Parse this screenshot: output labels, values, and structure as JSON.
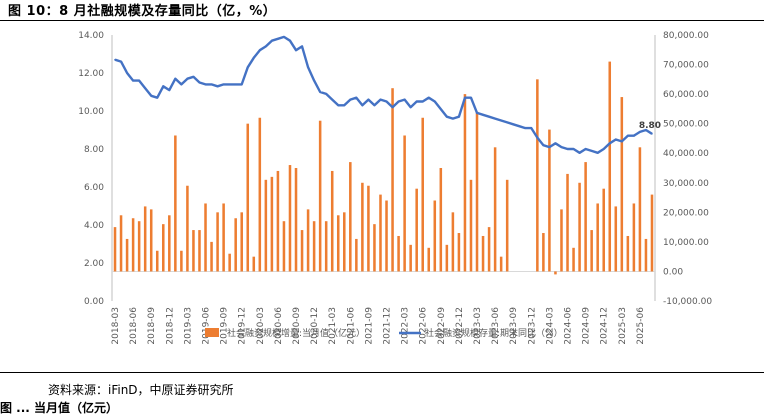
{
  "header": {
    "title": "图 10：8 月社融规模及存量同比（亿，%）"
  },
  "footer": {
    "source": "资料来源：iFinD，中原证券研究所",
    "next_caption": "图 ... 当月值（亿元）"
  },
  "chart_data": {
    "type": "bar+line",
    "title": "",
    "xlabel": "",
    "ylabel": "",
    "grid": false,
    "legend_position": "bottom",
    "colors": {
      "bar": "#ED7D31",
      "line": "#4472C4"
    },
    "x": [
      "2018-03",
      "2018-04",
      "2018-05",
      "2018-06",
      "2018-07",
      "2018-08",
      "2018-09",
      "2018-10",
      "2018-11",
      "2018-12",
      "2019-01",
      "2019-02",
      "2019-03",
      "2019-04",
      "2019-05",
      "2019-06",
      "2019-07",
      "2019-08",
      "2019-09",
      "2019-10",
      "2019-11",
      "2019-12",
      "2020-01",
      "2020-02",
      "2020-03",
      "2020-04",
      "2020-05",
      "2020-06",
      "2020-07",
      "2020-08",
      "2020-09",
      "2020-10",
      "2020-11",
      "2020-12",
      "2021-01",
      "2021-02",
      "2021-03",
      "2021-04",
      "2021-05",
      "2021-06",
      "2021-07",
      "2021-08",
      "2021-09",
      "2021-10",
      "2021-11",
      "2021-12",
      "2022-01",
      "2022-02",
      "2022-03",
      "2022-04",
      "2022-05",
      "2022-06",
      "2022-07",
      "2022-08",
      "2022-09",
      "2022-10",
      "2022-11",
      "2022-12",
      "2023-01",
      "2023-02",
      "2023-03",
      "2023-04",
      "2023-05",
      "2023-06",
      "2023-07",
      "2023-08",
      "2023-09",
      "2023-10",
      "2023-11",
      "2023-12",
      "2024-01",
      "2024-02",
      "2024-03",
      "2024-04",
      "2024-05",
      "2024-06",
      "2024-07",
      "2024-08",
      "2024-09",
      "2024-10",
      "2024-11",
      "2024-12",
      "2025-01",
      "2025-02",
      "2025-03",
      "2025-04",
      "2025-05",
      "2025-06",
      "2025-07",
      "2025-08"
    ],
    "x_tick_labels": [
      "2018-03",
      "2018-06",
      "2018-09",
      "2018-12",
      "2019-03",
      "2019-06",
      "2019-09",
      "2019-12",
      "2020-03",
      "2020-06",
      "2020-09",
      "2020-12",
      "2021-03",
      "2021-06",
      "2021-09",
      "2021-12",
      "2022-03",
      "2022-06",
      "2022-09",
      "2022-12",
      "2023-03",
      "2023-06",
      "2023-09",
      "2023-12",
      "2024-03",
      "2024-06",
      "2024-09",
      "2024-12",
      "2025-03",
      "2025-06"
    ],
    "y_left": {
      "range": [
        0,
        14
      ],
      "ticks": [
        "0.00",
        "2.00",
        "4.00",
        "6.00",
        "8.00",
        "10.00",
        "12.00",
        "14.00"
      ]
    },
    "y_right": {
      "range": [
        -10000,
        80000
      ],
      "ticks": [
        "-10,000.00",
        "0.00",
        "10,000.00",
        "20,000.00",
        "30,000.00",
        "40,000.00",
        "50,000.00",
        "60,000.00",
        "70,000.00",
        "80,000.00"
      ]
    },
    "series": [
      {
        "name": "社会融资规模增量:当月值（亿元）",
        "type": "bar",
        "axis": "right",
        "values": [
          15000,
          19000,
          11000,
          18000,
          17000,
          22000,
          21000,
          7000,
          16000,
          19000,
          46000,
          7000,
          29000,
          14000,
          14000,
          23000,
          10000,
          20000,
          23000,
          6000,
          18000,
          20000,
          50000,
          5000,
          52000,
          31000,
          32000,
          34000,
          17000,
          36000,
          35000,
          14000,
          21000,
          17000,
          51000,
          17000,
          34000,
          19000,
          20000,
          37000,
          11000,
          30000,
          29000,
          16000,
          26000,
          24000,
          62000,
          12000,
          46000,
          9000,
          28000,
          52000,
          8000,
          24000,
          35000,
          9000,
          20000,
          13000,
          60000,
          31000,
          54000,
          12000,
          15000,
          42000,
          5000,
          31000,
          0,
          0,
          0,
          0,
          65000,
          13000,
          48000,
          -1000,
          21000,
          33000,
          8000,
          30000,
          37000,
          14000,
          23000,
          28000,
          71000,
          22000,
          59000,
          12000,
          23000,
          42000,
          11000,
          26000
        ]
      },
      {
        "name": "社会融资规模存量:期末同比（%）",
        "type": "line",
        "axis": "left",
        "values": [
          12.7,
          12.6,
          12.0,
          11.6,
          11.6,
          11.2,
          10.8,
          10.7,
          11.3,
          11.1,
          11.7,
          11.4,
          11.7,
          11.8,
          11.5,
          11.4,
          11.4,
          11.3,
          11.4,
          11.4,
          11.4,
          11.4,
          12.3,
          12.8,
          13.2,
          13.4,
          13.7,
          13.8,
          13.9,
          13.7,
          13.2,
          13.4,
          12.3,
          11.6,
          11.0,
          10.9,
          10.6,
          10.3,
          10.3,
          10.6,
          10.7,
          10.3,
          10.6,
          10.3,
          10.6,
          10.5,
          10.2,
          10.5,
          10.6,
          10.2,
          10.5,
          10.5,
          10.7,
          10.5,
          10.1,
          9.7,
          9.6,
          9.7,
          10.7,
          10.7,
          9.9,
          9.8,
          9.7,
          9.6,
          9.5,
          9.4,
          9.3,
          9.2,
          9.1,
          9.1,
          8.6,
          8.2,
          8.1,
          8.3,
          8.1,
          8.0,
          8.0,
          7.8,
          8.0,
          7.9,
          7.8,
          8.0,
          8.3,
          8.5,
          8.4,
          8.7,
          8.7,
          8.9,
          9.0,
          8.8
        ]
      }
    ],
    "annotations": [
      {
        "text": "8.80",
        "x": "2025-08",
        "series": "社会融资规模存量:期末同比（%）"
      }
    ]
  }
}
